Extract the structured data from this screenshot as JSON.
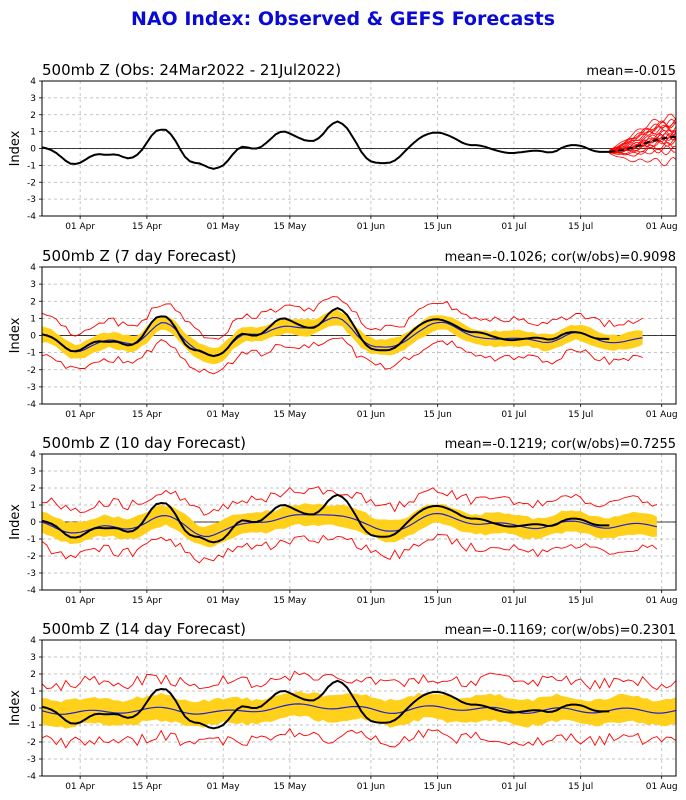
{
  "title": "NAO Index: Observed & GEFS Forecasts",
  "colors": {
    "title": "#0a0ad6",
    "observed": "#000000",
    "ensemble_member": "#ff0000",
    "ensemble_mean": "#2222cc",
    "spread_band": "#ffd11a",
    "grid": "#b0b0b0"
  },
  "chart_data": [
    {
      "type": "line",
      "title": "500mb Z (Obs: 24Mar2022 - 21Jul2022)",
      "stat_text": "mean=-0.015",
      "ylabel": "Index",
      "ylim": [
        -4,
        4
      ],
      "yticks": [
        -4,
        -3,
        -2,
        -1,
        0,
        1,
        2,
        3,
        4
      ],
      "x_start": "2022-03-24",
      "x_end": "2022-08-04",
      "xticks": [
        "01 Apr",
        "15 Apr",
        "01 May",
        "15 May",
        "01 Jun",
        "15 Jun",
        "01 Jul",
        "15 Jul",
        "01 Aug"
      ],
      "grid": true,
      "observed": {
        "x": [
          "2022-03-24",
          "2022-03-27",
          "2022-03-29",
          "2022-03-31",
          "2022-04-02",
          "2022-04-04",
          "2022-04-07",
          "2022-04-09",
          "2022-04-11",
          "2022-04-14",
          "2022-04-16",
          "2022-04-18",
          "2022-04-20",
          "2022-04-22",
          "2022-04-24",
          "2022-04-26",
          "2022-04-28",
          "2022-04-30",
          "2022-05-02",
          "2022-05-04",
          "2022-05-06",
          "2022-05-08",
          "2022-05-10",
          "2022-05-13",
          "2022-05-15",
          "2022-05-17",
          "2022-05-19",
          "2022-05-21",
          "2022-05-24",
          "2022-05-26",
          "2022-05-28",
          "2022-05-31",
          "2022-06-03",
          "2022-06-06",
          "2022-06-09",
          "2022-06-12",
          "2022-06-15",
          "2022-06-18",
          "2022-06-21",
          "2022-06-24",
          "2022-06-27",
          "2022-06-30",
          "2022-07-03",
          "2022-07-06",
          "2022-07-09",
          "2022-07-12",
          "2022-07-15",
          "2022-07-18",
          "2022-07-21"
        ],
        "y": [
          0.1,
          -0.2,
          -0.8,
          -1.0,
          -0.7,
          -0.3,
          -0.4,
          -0.3,
          -0.7,
          -0.2,
          0.9,
          1.2,
          1.0,
          -0.1,
          -0.9,
          -0.8,
          -1.2,
          -1.2,
          -0.8,
          0.1,
          0.1,
          -0.1,
          0.3,
          1.1,
          0.9,
          0.6,
          0.4,
          0.5,
          1.6,
          1.6,
          0.8,
          -0.7,
          -0.9,
          -0.8,
          0.1,
          0.8,
          1.0,
          0.7,
          0.2,
          0.2,
          -0.1,
          -0.3,
          -0.2,
          -0.1,
          -0.3,
          0.2,
          0.2,
          -0.2,
          -0.2
        ]
      },
      "ensemble_forecast": {
        "start": "2022-07-21",
        "end": "2022-08-04",
        "mean_y": [
          -0.2,
          -0.1,
          0.1,
          0.4,
          0.6,
          0.7
        ],
        "low_y": [
          -0.3,
          -0.6,
          -0.8,
          -0.7,
          -0.9,
          -0.8
        ],
        "high_y": [
          -0.1,
          0.4,
          1.0,
          1.5,
          1.8,
          1.9
        ]
      }
    },
    {
      "type": "line",
      "title": "500mb Z (7 day Forecast)",
      "stat_text": "mean=-0.1026; cor(w/obs)=0.9098",
      "ylabel": "Index",
      "ylim": [
        -4,
        4
      ],
      "yticks": [
        -4,
        -3,
        -2,
        -1,
        0,
        1,
        2,
        3,
        4
      ],
      "x_start": "2022-03-24",
      "x_end": "2022-08-04",
      "xticks": [
        "01 Apr",
        "15 Apr",
        "01 May",
        "15 May",
        "01 Jun",
        "15 Jun",
        "01 Jul",
        "15 Jul",
        "01 Aug"
      ],
      "grid": true,
      "obs_end": "2022-07-21",
      "forecast_end": "2022-07-28",
      "mean_offset": -0.1,
      "band_half_width": 0.45,
      "envelope_half_width": 1.1
    },
    {
      "type": "line",
      "title": "500mb Z (10 day Forecast)",
      "stat_text": "mean=-0.1219; cor(w/obs)=0.7255",
      "ylabel": "Index",
      "ylim": [
        -4,
        4
      ],
      "yticks": [
        -4,
        -3,
        -2,
        -1,
        0,
        1,
        2,
        3,
        4
      ],
      "x_start": "2022-03-24",
      "x_end": "2022-08-04",
      "xticks": [
        "01 Apr",
        "15 Apr",
        "01 May",
        "15 May",
        "01 Jun",
        "15 Jun",
        "01 Jul",
        "15 Jul",
        "01 Aug"
      ],
      "grid": true,
      "obs_end": "2022-07-21",
      "forecast_end": "2022-07-31",
      "mean_offset": -0.12,
      "band_half_width": 0.6,
      "envelope_half_width": 1.4
    },
    {
      "type": "line",
      "title": "500mb Z (14 day Forecast)",
      "stat_text": "mean=-0.1169; cor(w/obs)=0.2301",
      "ylabel": "Index",
      "ylim": [
        -4,
        4
      ],
      "yticks": [
        -4,
        -3,
        -2,
        -1,
        0,
        1,
        2,
        3,
        4
      ],
      "x_start": "2022-03-24",
      "x_end": "2022-08-04",
      "xticks": [
        "01 Apr",
        "15 Apr",
        "01 May",
        "15 May",
        "01 Jun",
        "15 Jun",
        "01 Jul",
        "15 Jul",
        "01 Aug"
      ],
      "grid": true,
      "obs_end": "2022-07-21",
      "forecast_end": "2022-08-04",
      "mean_offset": -0.12,
      "band_half_width": 0.75,
      "envelope_half_width": 1.7
    }
  ]
}
